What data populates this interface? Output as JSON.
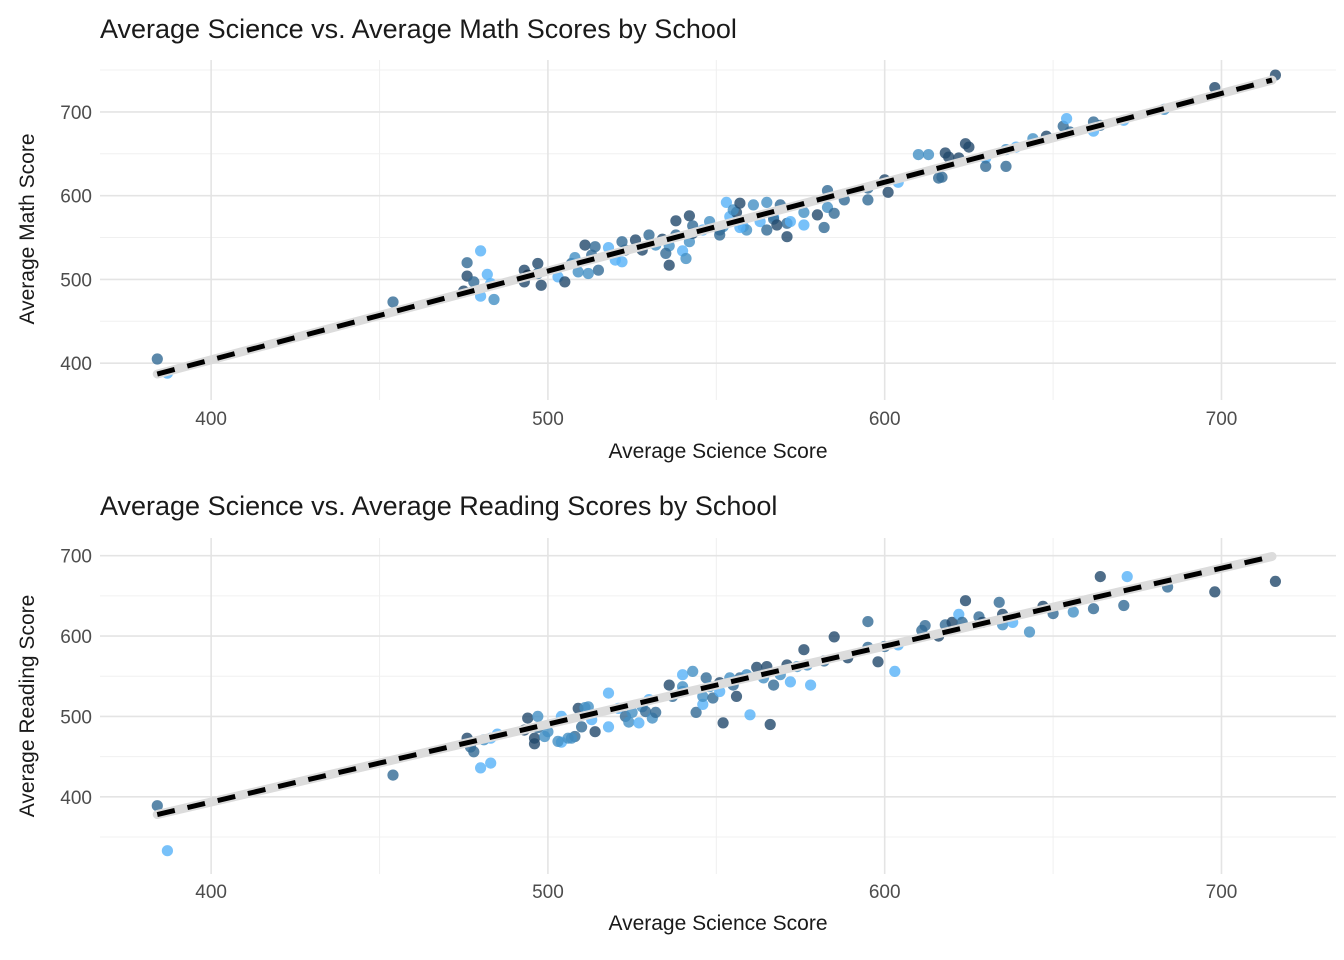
{
  "colors": {
    "background": "#ffffff",
    "point_palette": [
      "#132b43",
      "#22486b",
      "#326a95",
      "#4490c4",
      "#56b1f7"
    ],
    "point_opacity": 0.8,
    "trend_underlay": "#dcdcdc",
    "trend_dash": "#000000",
    "grid_major": "#e4e4e4",
    "grid_minor": "#f0f0f0",
    "tick_label_color": "#4d4d4d",
    "text_color": "#1a1a1a"
  },
  "chart_data": [
    {
      "type": "scatter",
      "title": "Average Science vs. Average Math Scores by School",
      "xlabel": "Average Science Score",
      "ylabel": "Average Math Score",
      "x_ticks": [
        400,
        500,
        600,
        700
      ],
      "y_ticks": [
        400,
        500,
        600,
        700
      ],
      "x_minor_ticks": [
        450,
        550,
        650
      ],
      "y_minor_ticks": [
        450,
        550,
        650,
        750
      ],
      "xlim": [
        367,
        734
      ],
      "ylim": [
        356,
        762
      ],
      "grid": true,
      "legend": false,
      "trend_line": {
        "style": "dashed",
        "x": [
          384,
          715
        ],
        "y": [
          387,
          738
        ]
      },
      "points": [
        [
          384,
          405,
          2
        ],
        [
          387,
          388,
          4
        ],
        [
          454,
          473,
          2
        ],
        [
          476,
          520,
          2
        ],
        [
          476,
          504,
          1
        ],
        [
          478,
          497,
          2
        ],
        [
          475,
          486,
          1
        ],
        [
          480,
          534,
          4
        ],
        [
          482,
          506,
          4
        ],
        [
          483,
          495,
          4
        ],
        [
          480,
          480,
          4
        ],
        [
          484,
          476,
          3
        ],
        [
          493,
          511,
          1
        ],
        [
          494,
          505,
          0
        ],
        [
          493,
          497,
          1
        ],
        [
          497,
          519,
          1
        ],
        [
          497,
          507,
          2
        ],
        [
          498,
          493,
          1
        ],
        [
          503,
          503,
          4
        ],
        [
          505,
          497,
          1
        ],
        [
          507,
          519,
          2
        ],
        [
          508,
          526,
          3
        ],
        [
          509,
          509,
          3
        ],
        [
          511,
          541,
          1
        ],
        [
          513,
          529,
          2
        ],
        [
          514,
          539,
          2
        ],
        [
          515,
          511,
          2
        ],
        [
          512,
          507,
          3
        ],
        [
          518,
          538,
          4
        ],
        [
          520,
          523,
          4
        ],
        [
          522,
          545,
          2
        ],
        [
          523,
          535,
          2
        ],
        [
          522,
          521,
          4
        ],
        [
          526,
          547,
          1
        ],
        [
          528,
          535,
          1
        ],
        [
          530,
          553,
          2
        ],
        [
          532,
          541,
          3
        ],
        [
          534,
          548,
          1
        ],
        [
          536,
          540,
          3
        ],
        [
          538,
          553,
          2
        ],
        [
          540,
          534,
          4
        ],
        [
          542,
          545,
          3
        ],
        [
          543,
          555,
          1
        ],
        [
          538,
          570,
          1
        ],
        [
          542,
          576,
          1
        ],
        [
          543,
          564,
          2
        ],
        [
          535,
          531,
          2
        ],
        [
          536,
          517,
          1
        ],
        [
          541,
          525,
          3
        ],
        [
          546,
          559,
          4
        ],
        [
          548,
          569,
          3
        ],
        [
          551,
          553,
          2
        ],
        [
          552,
          563,
          3
        ],
        [
          554,
          575,
          4
        ],
        [
          556,
          580,
          1
        ],
        [
          558,
          563,
          4
        ],
        [
          551,
          559,
          2
        ],
        [
          553,
          592,
          4
        ],
        [
          555,
          583,
          3
        ],
        [
          557,
          591,
          1
        ],
        [
          559,
          559,
          3
        ],
        [
          557,
          562,
          4
        ],
        [
          561,
          589,
          3
        ],
        [
          563,
          569,
          4
        ],
        [
          565,
          559,
          2
        ],
        [
          565,
          592,
          3
        ],
        [
          567,
          575,
          4
        ],
        [
          567,
          572,
          2
        ],
        [
          568,
          565,
          1
        ],
        [
          569,
          589,
          2
        ],
        [
          571,
          551,
          1
        ],
        [
          571,
          567,
          2
        ],
        [
          572,
          569,
          4
        ],
        [
          576,
          580,
          3
        ],
        [
          576,
          565,
          4
        ],
        [
          580,
          577,
          1
        ],
        [
          582,
          562,
          2
        ],
        [
          583,
          606,
          2
        ],
        [
          583,
          586,
          3
        ],
        [
          585,
          579,
          2
        ],
        [
          588,
          595,
          2
        ],
        [
          595,
          609,
          2
        ],
        [
          595,
          595,
          2
        ],
        [
          600,
          619,
          1
        ],
        [
          601,
          604,
          1
        ],
        [
          604,
          616,
          4
        ],
        [
          610,
          649,
          3
        ],
        [
          613,
          649,
          3
        ],
        [
          616,
          621,
          2
        ],
        [
          618,
          651,
          1
        ],
        [
          619,
          646,
          1
        ],
        [
          617,
          622,
          2
        ],
        [
          622,
          645,
          1
        ],
        [
          624,
          662,
          1
        ],
        [
          625,
          658,
          1
        ],
        [
          630,
          645,
          4
        ],
        [
          630,
          635,
          2
        ],
        [
          636,
          655,
          3
        ],
        [
          636,
          635,
          2
        ],
        [
          639,
          658,
          4
        ],
        [
          644,
          668,
          3
        ],
        [
          648,
          671,
          1
        ],
        [
          653,
          683,
          2
        ],
        [
          655,
          676,
          2
        ],
        [
          654,
          692,
          4
        ],
        [
          662,
          688,
          2
        ],
        [
          664,
          684,
          2
        ],
        [
          662,
          677,
          4
        ],
        [
          671,
          690,
          4
        ],
        [
          683,
          703,
          3
        ],
        [
          698,
          729,
          1
        ],
        [
          716,
          744,
          1
        ]
      ]
    },
    {
      "type": "scatter",
      "title": "Average Science vs. Average Reading Scores by School",
      "xlabel": "Average Science Score",
      "ylabel": "Average Reading Score",
      "x_ticks": [
        400,
        500,
        600,
        700
      ],
      "y_ticks": [
        400,
        500,
        600,
        700
      ],
      "x_minor_ticks": [
        450,
        550,
        650
      ],
      "y_minor_ticks": [
        350,
        450,
        550,
        650
      ],
      "xlim": [
        367,
        734
      ],
      "ylim": [
        304,
        722
      ],
      "grid": true,
      "legend": false,
      "trend_line": {
        "style": "dashed",
        "x": [
          384,
          715
        ],
        "y": [
          378,
          699
        ]
      },
      "points": [
        [
          384,
          389,
          2
        ],
        [
          387,
          333,
          4
        ],
        [
          454,
          427,
          2
        ],
        [
          476,
          473,
          1
        ],
        [
          477,
          462,
          2
        ],
        [
          478,
          456,
          2
        ],
        [
          481,
          471,
          3
        ],
        [
          483,
          473,
          4
        ],
        [
          485,
          478,
          4
        ],
        [
          480,
          436,
          4
        ],
        [
          483,
          442,
          4
        ],
        [
          493,
          483,
          1
        ],
        [
          494,
          498,
          1
        ],
        [
          497,
          500,
          3
        ],
        [
          497,
          486,
          2
        ],
        [
          496,
          473,
          1
        ],
        [
          496,
          466,
          1
        ],
        [
          499,
          475,
          3
        ],
        [
          504,
          500,
          4
        ],
        [
          504,
          468,
          4
        ],
        [
          506,
          473,
          3
        ],
        [
          508,
          475,
          2
        ],
        [
          510,
          487,
          2
        ],
        [
          500,
          481,
          3
        ],
        [
          503,
          469,
          3
        ],
        [
          507,
          473,
          3
        ],
        [
          509,
          510,
          1
        ],
        [
          511,
          511,
          3
        ],
        [
          512,
          512,
          3
        ],
        [
          513,
          496,
          4
        ],
        [
          514,
          481,
          1
        ],
        [
          518,
          529,
          4
        ],
        [
          518,
          487,
          4
        ],
        [
          521,
          510,
          4
        ],
        [
          523,
          500,
          2
        ],
        [
          524,
          493,
          3
        ],
        [
          525,
          505,
          3
        ],
        [
          527,
          492,
          4
        ],
        [
          528,
          512,
          3
        ],
        [
          529,
          506,
          2
        ],
        [
          531,
          498,
          3
        ],
        [
          530,
          521,
          4
        ],
        [
          532,
          505,
          2
        ],
        [
          536,
          539,
          1
        ],
        [
          537,
          525,
          2
        ],
        [
          540,
          537,
          3
        ],
        [
          540,
          552,
          4
        ],
        [
          540,
          531,
          3
        ],
        [
          543,
          556,
          3
        ],
        [
          544,
          505,
          2
        ],
        [
          546,
          515,
          4
        ],
        [
          547,
          548,
          2
        ],
        [
          548,
          537,
          3
        ],
        [
          546,
          525,
          3
        ],
        [
          549,
          523,
          2
        ],
        [
          551,
          542,
          1
        ],
        [
          551,
          531,
          4
        ],
        [
          552,
          492,
          1
        ],
        [
          554,
          548,
          3
        ],
        [
          555,
          539,
          2
        ],
        [
          556,
          525,
          1
        ],
        [
          557,
          548,
          2
        ],
        [
          559,
          552,
          3
        ],
        [
          560,
          502,
          4
        ],
        [
          562,
          561,
          1
        ],
        [
          564,
          548,
          3
        ],
        [
          565,
          562,
          1
        ],
        [
          566,
          490,
          1
        ],
        [
          567,
          539,
          2
        ],
        [
          569,
          552,
          3
        ],
        [
          571,
          564,
          1
        ],
        [
          572,
          543,
          4
        ],
        [
          574,
          562,
          3
        ],
        [
          576,
          583,
          1
        ],
        [
          577,
          564,
          3
        ],
        [
          578,
          539,
          4
        ],
        [
          582,
          569,
          2
        ],
        [
          585,
          599,
          1
        ],
        [
          589,
          573,
          1
        ],
        [
          595,
          618,
          2
        ],
        [
          595,
          586,
          2
        ],
        [
          600,
          587,
          2
        ],
        [
          598,
          568,
          1
        ],
        [
          604,
          589,
          4
        ],
        [
          603,
          556,
          4
        ],
        [
          611,
          607,
          2
        ],
        [
          612,
          613,
          2
        ],
        [
          616,
          600,
          1
        ],
        [
          618,
          614,
          2
        ],
        [
          620,
          617,
          1
        ],
        [
          622,
          627,
          4
        ],
        [
          623,
          617,
          2
        ],
        [
          624,
          644,
          1
        ],
        [
          628,
          624,
          2
        ],
        [
          629,
          617,
          1
        ],
        [
          634,
          642,
          2
        ],
        [
          635,
          627,
          1
        ],
        [
          635,
          614,
          3
        ],
        [
          638,
          617,
          4
        ],
        [
          643,
          605,
          3
        ],
        [
          647,
          637,
          1
        ],
        [
          650,
          628,
          2
        ],
        [
          656,
          630,
          3
        ],
        [
          662,
          634,
          2
        ],
        [
          664,
          674,
          1
        ],
        [
          672,
          674,
          4
        ],
        [
          671,
          638,
          2
        ],
        [
          684,
          661,
          2
        ],
        [
          698,
          655,
          1
        ],
        [
          716,
          668,
          1
        ]
      ]
    }
  ]
}
